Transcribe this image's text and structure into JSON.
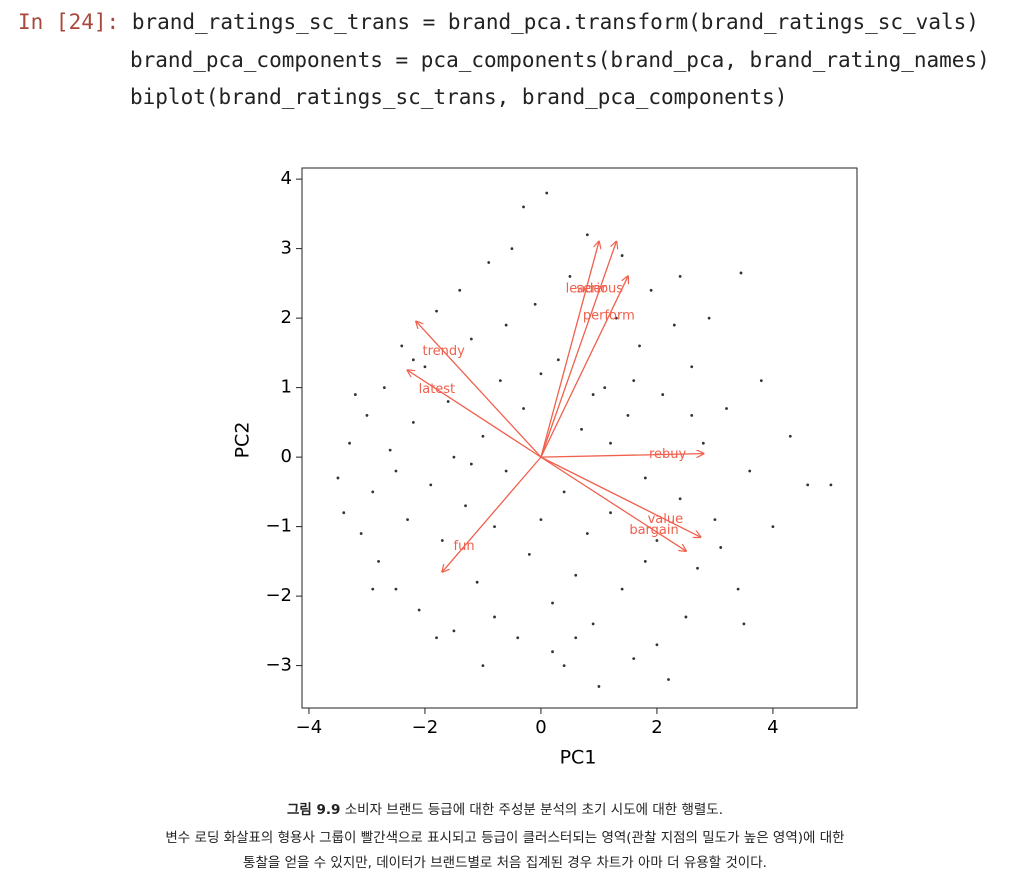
{
  "code": {
    "prompt": "In [24]:",
    "lines": [
      "brand_ratings_sc_trans = brand_pca.transform(brand_ratings_sc_vals)",
      "brand_pca_components = pca_components(brand_pca, brand_rating_names)",
      "biplot(brand_ratings_sc_trans, brand_pca_components)"
    ]
  },
  "chart_data": {
    "type": "scatter",
    "xlabel": "PC1",
    "ylabel": "PC2",
    "xlim": [
      -4.12,
      5.45
    ],
    "ylim": [
      -3.61,
      4.16
    ],
    "xticks": [
      {
        "value": -4,
        "label": "−4"
      },
      {
        "value": -2,
        "label": "−2"
      },
      0,
      2,
      4
    ],
    "yticks": [
      {
        "value": -3,
        "label": "−3"
      },
      {
        "value": -2,
        "label": "−2"
      },
      {
        "value": -1,
        "label": "−1"
      },
      0,
      1,
      2,
      3,
      4
    ],
    "color": "#333333",
    "x": [
      -3.5,
      -3.4,
      -3.3,
      -3.1,
      -3.0,
      -2.9,
      -2.8,
      -2.7,
      -2.6,
      -2.5,
      -2.4,
      -2.3,
      -2.2,
      -2.1,
      -2.0,
      -1.9,
      -1.8,
      -1.7,
      -1.6,
      -1.5,
      -1.4,
      -1.3,
      -1.2,
      -1.1,
      -1.0,
      -0.9,
      -0.8,
      -0.7,
      -0.6,
      -0.5,
      -0.4,
      -0.3,
      -0.2,
      -0.1,
      0.0,
      0.1,
      0.2,
      0.3,
      0.4,
      0.5,
      0.6,
      0.7,
      0.8,
      0.9,
      1.0,
      1.1,
      1.2,
      1.3,
      1.4,
      1.5,
      1.6,
      1.7,
      1.8,
      1.9,
      2.0,
      2.1,
      2.2,
      2.3,
      2.4,
      2.5,
      2.6,
      2.7,
      2.8,
      2.9,
      3.0,
      3.2,
      3.4,
      3.45,
      3.6,
      3.8,
      4.0,
      4.3,
      4.6,
      5.0,
      -2.5,
      -1.8,
      -1.2,
      -0.6,
      0.2,
      0.8,
      1.4,
      2.0,
      2.6,
      -2.9,
      -2.2,
      -1.5,
      -0.8,
      0.0,
      0.6,
      1.2,
      1.8,
      2.4,
      3.1,
      -1.0,
      0.4,
      1.6,
      -0.3,
      0.9,
      -3.2,
      3.5
    ],
    "y": [
      -0.3,
      -0.8,
      0.2,
      -1.1,
      0.6,
      -0.5,
      -1.5,
      1.0,
      0.1,
      -1.9,
      1.6,
      -0.9,
      0.5,
      -2.2,
      1.3,
      -0.4,
      2.1,
      -1.2,
      0.8,
      -2.5,
      2.4,
      -0.7,
      1.7,
      -1.8,
      0.3,
      2.8,
      -2.3,
      1.1,
      -0.2,
      3.0,
      -2.6,
      0.7,
      -1.4,
      2.2,
      -0.9,
      3.8,
      -2.8,
      1.4,
      -0.5,
      2.6,
      -1.7,
      0.4,
      3.2,
      -2.4,
      -3.3,
      1.0,
      -0.8,
      2.0,
      -1.9,
      0.6,
      -2.9,
      1.6,
      -0.3,
      2.4,
      -1.2,
      0.9,
      -3.2,
      1.9,
      -0.6,
      -2.3,
      1.3,
      -1.6,
      0.2,
      2.0,
      -0.9,
      0.7,
      -1.9,
      2.65,
      -0.2,
      1.1,
      -1.0,
      0.3,
      -0.4,
      -0.4,
      -0.2,
      -2.6,
      -0.1,
      1.9,
      -2.1,
      -1.1,
      2.9,
      -2.7,
      0.6,
      -1.9,
      1.4,
      0.0,
      -1.0,
      1.2,
      -2.6,
      0.2,
      -1.5,
      2.6,
      -1.3,
      -3.0,
      -3.0,
      1.1,
      3.6,
      0.9,
      0.9,
      -2.4
    ],
    "loadings": {
      "color": "#f0604d",
      "labels": [
        "leader",
        "serious",
        "perform",
        "trendy",
        "latest",
        "rebuy",
        "value",
        "bargain",
        "fun"
      ],
      "x": [
        1.0,
        1.3,
        1.5,
        -2.15,
        -2.3,
        2.8,
        2.75,
        2.5,
        -1.7
      ],
      "y": [
        3.1,
        3.1,
        2.6,
        1.95,
        1.25,
        0.05,
        -1.15,
        -1.35,
        -1.65
      ]
    }
  },
  "caption": {
    "title": "그림 9.9",
    "title_text": "소비자 브랜드 등급에 대한 주성분 분석의 초기 시도에 대한 행렬도.",
    "lines": [
      "변수 로딩 화살표의 형용사 그룹이 빨간색으로 표시되고 등급이 클러스터되는 영역(관찰 지점의 밀도가 높은 영역)에 대한",
      "통찰을 얻을 수 있지만, 데이터가 브랜드별로 처음 집계된 경우 차트가 아마 더 유용할 것이다."
    ]
  }
}
